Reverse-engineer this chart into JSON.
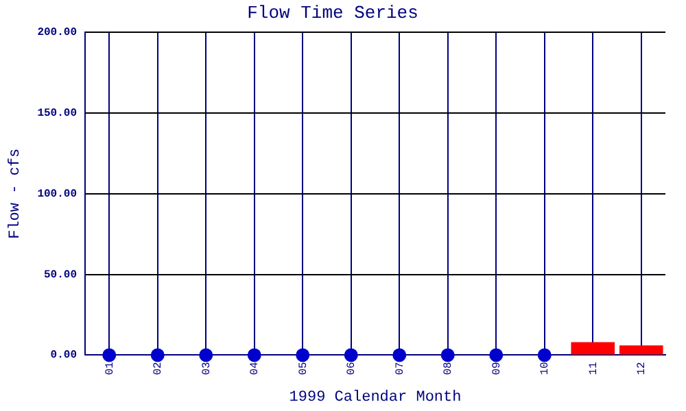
{
  "chart_data": {
    "type": "bar",
    "title": "Flow Time Series",
    "xlabel": "1999 Calendar Month",
    "ylabel": "Flow - cfs",
    "categories": [
      "01",
      "02",
      "03",
      "04",
      "05",
      "06",
      "07",
      "08",
      "09",
      "10",
      "11",
      "12"
    ],
    "series": [
      {
        "type": "scatter",
        "color": "#0000cc",
        "values": [
          0,
          0,
          0,
          0,
          0,
          0,
          0,
          0,
          0,
          0,
          null,
          null
        ]
      },
      {
        "color": "#ff0000",
        "values": [
          null,
          null,
          null,
          null,
          null,
          null,
          null,
          null,
          null,
          null,
          8,
          6
        ]
      }
    ],
    "ylim": [
      0,
      200
    ],
    "yticks": [
      {
        "value": 0,
        "label": "0.00"
      },
      {
        "value": 50,
        "label": "50.00"
      },
      {
        "value": 100,
        "label": "100.00"
      },
      {
        "value": 150,
        "label": "150.00"
      },
      {
        "value": 200,
        "label": "200.00"
      }
    ],
    "grid": true,
    "legend": false,
    "marker": "circle"
  }
}
